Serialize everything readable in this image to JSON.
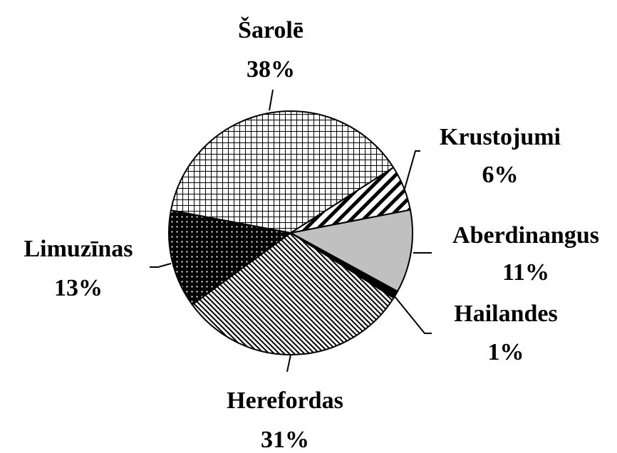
{
  "chart_data": {
    "type": "pie",
    "categories": [
      "Šarolē",
      "Krustojumi",
      "Aberdinangus",
      "Hailandes",
      "Herefordas",
      "Limuzīnas"
    ],
    "values": [
      38,
      6,
      11,
      1,
      31,
      13
    ],
    "value_labels": [
      "38%",
      "6%",
      "11%",
      "1%",
      "31%",
      "13%"
    ]
  }
}
